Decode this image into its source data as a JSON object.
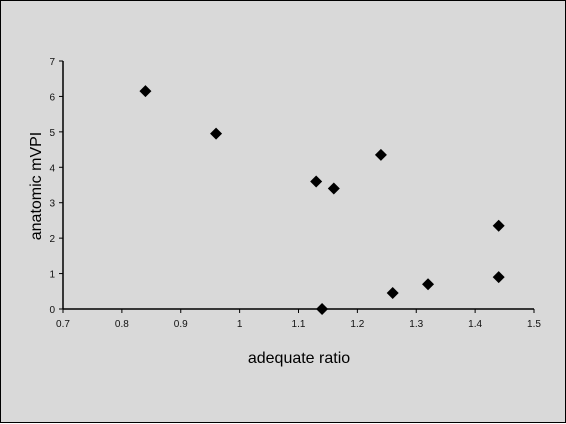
{
  "chart_data": {
    "type": "scatter",
    "title": "",
    "xlabel": "adequate ratio",
    "ylabel": "anatomic mVPI",
    "xlim": [
      0.7,
      1.5
    ],
    "ylim": [
      0,
      7
    ],
    "xticks": [
      "0.7",
      "0.8",
      "0.9",
      "1",
      "1.1",
      "1.2",
      "1.3",
      "1.4",
      "1.5"
    ],
    "yticks": [
      "0",
      "1",
      "2",
      "3",
      "4",
      "5",
      "6",
      "7"
    ],
    "grid": false,
    "legend": "none",
    "marker": "diamond",
    "marker_color": "#000000",
    "points": [
      {
        "x": 0.84,
        "y": 6.15
      },
      {
        "x": 0.96,
        "y": 4.95
      },
      {
        "x": 1.13,
        "y": 3.6
      },
      {
        "x": 1.16,
        "y": 3.4
      },
      {
        "x": 1.14,
        "y": 0.0
      },
      {
        "x": 1.24,
        "y": 4.35
      },
      {
        "x": 1.26,
        "y": 0.45
      },
      {
        "x": 1.32,
        "y": 0.7
      },
      {
        "x": 1.44,
        "y": 2.35
      },
      {
        "x": 1.44,
        "y": 0.9
      }
    ]
  }
}
